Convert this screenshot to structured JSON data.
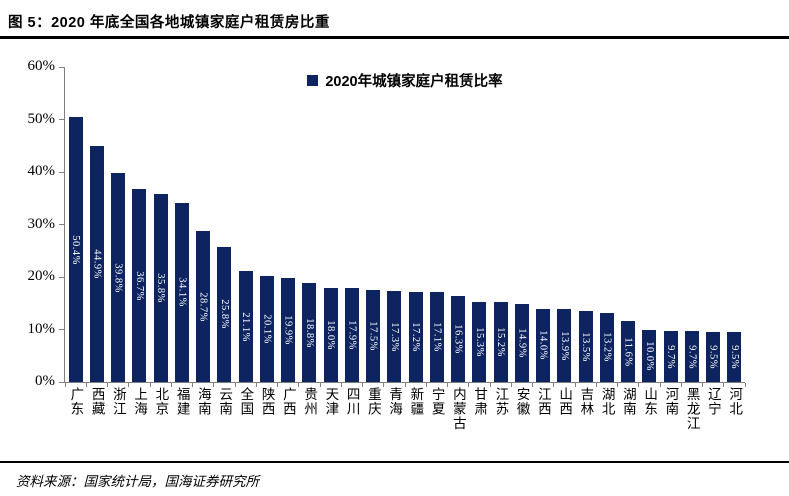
{
  "figure": {
    "title": "图 5：2020 年底全国各地城镇家庭户租赁房比重",
    "source": "资料来源：国家统计局，国海证券研究所"
  },
  "chart_data": {
    "type": "bar",
    "title": "",
    "series_name": "2020年城镇家庭户租赁比率",
    "legend_position": "top-center",
    "categories": [
      "广东",
      "西藏",
      "浙江",
      "上海",
      "北京",
      "福建",
      "海南",
      "云南",
      "全国",
      "陕西",
      "广西",
      "贵州",
      "天津",
      "四川",
      "重庆",
      "青海",
      "新疆",
      "宁夏",
      "内蒙古",
      "甘肃",
      "江苏",
      "安徽",
      "江西",
      "山西",
      "吉林",
      "湖北",
      "湖南",
      "山东",
      "河南",
      "黑龙江",
      "辽宁",
      "河北"
    ],
    "values": [
      50.4,
      44.9,
      39.8,
      36.7,
      35.8,
      34.1,
      28.7,
      25.8,
      21.1,
      20.1,
      19.9,
      18.8,
      18.0,
      17.9,
      17.5,
      17.3,
      17.2,
      17.1,
      16.3,
      15.3,
      15.2,
      14.9,
      14.0,
      13.9,
      13.5,
      13.2,
      11.6,
      10.0,
      9.7,
      9.7,
      9.5,
      9.5
    ],
    "value_labels": [
      "50.4%",
      "44.9%",
      "39.8%",
      "36.7%",
      "35.8%",
      "34.1%",
      "28.7%",
      "25.8%",
      "21.1%",
      "20.1%",
      "19.9%",
      "18.8%",
      "18.0%",
      "17.9%",
      "17.5%",
      "17.3%",
      "17.2%",
      "17.1%",
      "16.3%",
      "15.3%",
      "15.2%",
      "14.9%",
      "14.0%",
      "13.9%",
      "13.5%",
      "13.2%",
      "11.6%",
      "10.0%",
      "9.7%",
      "9.7%",
      "9.5%",
      "9.5%"
    ],
    "xlabel": "",
    "ylabel": "",
    "ylim": [
      0,
      60
    ],
    "ytick_labels": [
      "0%",
      "10%",
      "20%",
      "30%",
      "40%",
      "50%",
      "60%"
    ],
    "grid": false,
    "colors": {
      "bar": "#0E2460",
      "value_label": "#FFFFFF",
      "axis": "#808080",
      "text": "#000000"
    }
  }
}
